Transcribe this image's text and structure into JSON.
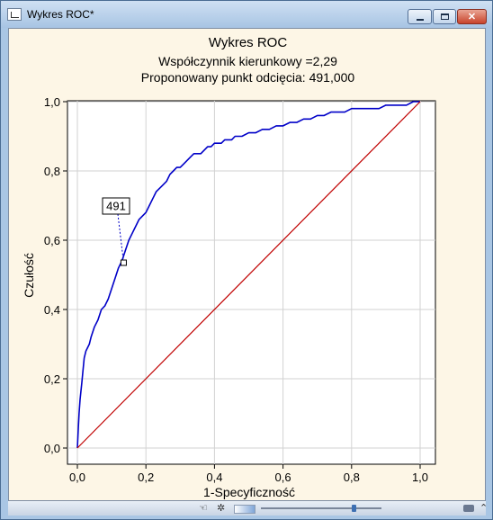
{
  "window": {
    "title": "Wykres ROC*",
    "controls": {
      "minimize": "minimize",
      "maximize": "maximize",
      "close": "✕"
    }
  },
  "chart_data": {
    "type": "line",
    "title": "Wykres ROC",
    "subtitle_lines": [
      "Współczynnik kierunkowy =2,29",
      "Proponowany punkt odcięcia: 491,000"
    ],
    "xlabel": "1-Specyficzność",
    "ylabel": "Czułość",
    "xlim": [
      0,
      1
    ],
    "ylim": [
      0,
      1
    ],
    "x_ticks": [
      "0,0",
      "0,2",
      "0,4",
      "0,6",
      "0,8",
      "1,0"
    ],
    "y_ticks": [
      "0,0",
      "0,2",
      "0,4",
      "0,6",
      "0,8",
      "1,0"
    ],
    "grid": true,
    "series": [
      {
        "color": "#0000c8",
        "x": [
          0,
          0.003,
          0.005,
          0.008,
          0.01,
          0.013,
          0.016,
          0.02,
          0.025,
          0.03,
          0.035,
          0.04,
          0.05,
          0.06,
          0.07,
          0.08,
          0.09,
          0.1,
          0.11,
          0.12,
          0.13,
          0.14,
          0.15,
          0.16,
          0.17,
          0.18,
          0.19,
          0.2,
          0.21,
          0.22,
          0.23,
          0.24,
          0.25,
          0.26,
          0.27,
          0.28,
          0.29,
          0.3,
          0.31,
          0.32,
          0.33,
          0.34,
          0.35,
          0.36,
          0.37,
          0.38,
          0.39,
          0.4,
          0.41,
          0.42,
          0.43,
          0.44,
          0.45,
          0.46,
          0.48,
          0.5,
          0.52,
          0.54,
          0.56,
          0.58,
          0.6,
          0.62,
          0.64,
          0.66,
          0.68,
          0.7,
          0.72,
          0.74,
          0.76,
          0.78,
          0.8,
          0.82,
          0.84,
          0.86,
          0.88,
          0.9,
          0.92,
          0.94,
          0.96,
          0.98,
          1.0
        ],
        "y": [
          0,
          0.06,
          0.1,
          0.14,
          0.16,
          0.19,
          0.22,
          0.26,
          0.28,
          0.29,
          0.3,
          0.32,
          0.35,
          0.37,
          0.4,
          0.41,
          0.43,
          0.46,
          0.49,
          0.52,
          0.54,
          0.57,
          0.6,
          0.62,
          0.64,
          0.66,
          0.67,
          0.68,
          0.7,
          0.72,
          0.74,
          0.75,
          0.76,
          0.77,
          0.79,
          0.8,
          0.81,
          0.81,
          0.82,
          0.83,
          0.84,
          0.85,
          0.85,
          0.85,
          0.86,
          0.87,
          0.87,
          0.88,
          0.88,
          0.88,
          0.89,
          0.89,
          0.89,
          0.9,
          0.9,
          0.91,
          0.91,
          0.92,
          0.92,
          0.93,
          0.93,
          0.94,
          0.94,
          0.95,
          0.95,
          0.96,
          0.96,
          0.97,
          0.97,
          0.97,
          0.98,
          0.98,
          0.98,
          0.98,
          0.98,
          0.99,
          0.99,
          0.99,
          0.99,
          1.0,
          1.0
        ]
      },
      {
        "color": "#c00000",
        "x": [
          0,
          1
        ],
        "y": [
          0,
          1
        ]
      }
    ],
    "annotations": [
      {
        "text": "491",
        "x": 0.135,
        "y": 0.535
      }
    ]
  },
  "statusbar": {
    "icons": [
      "hand-icon",
      "gear-icon",
      "color-chip",
      "zoom-slider",
      "key-icon",
      "scroll-up-icon"
    ]
  }
}
